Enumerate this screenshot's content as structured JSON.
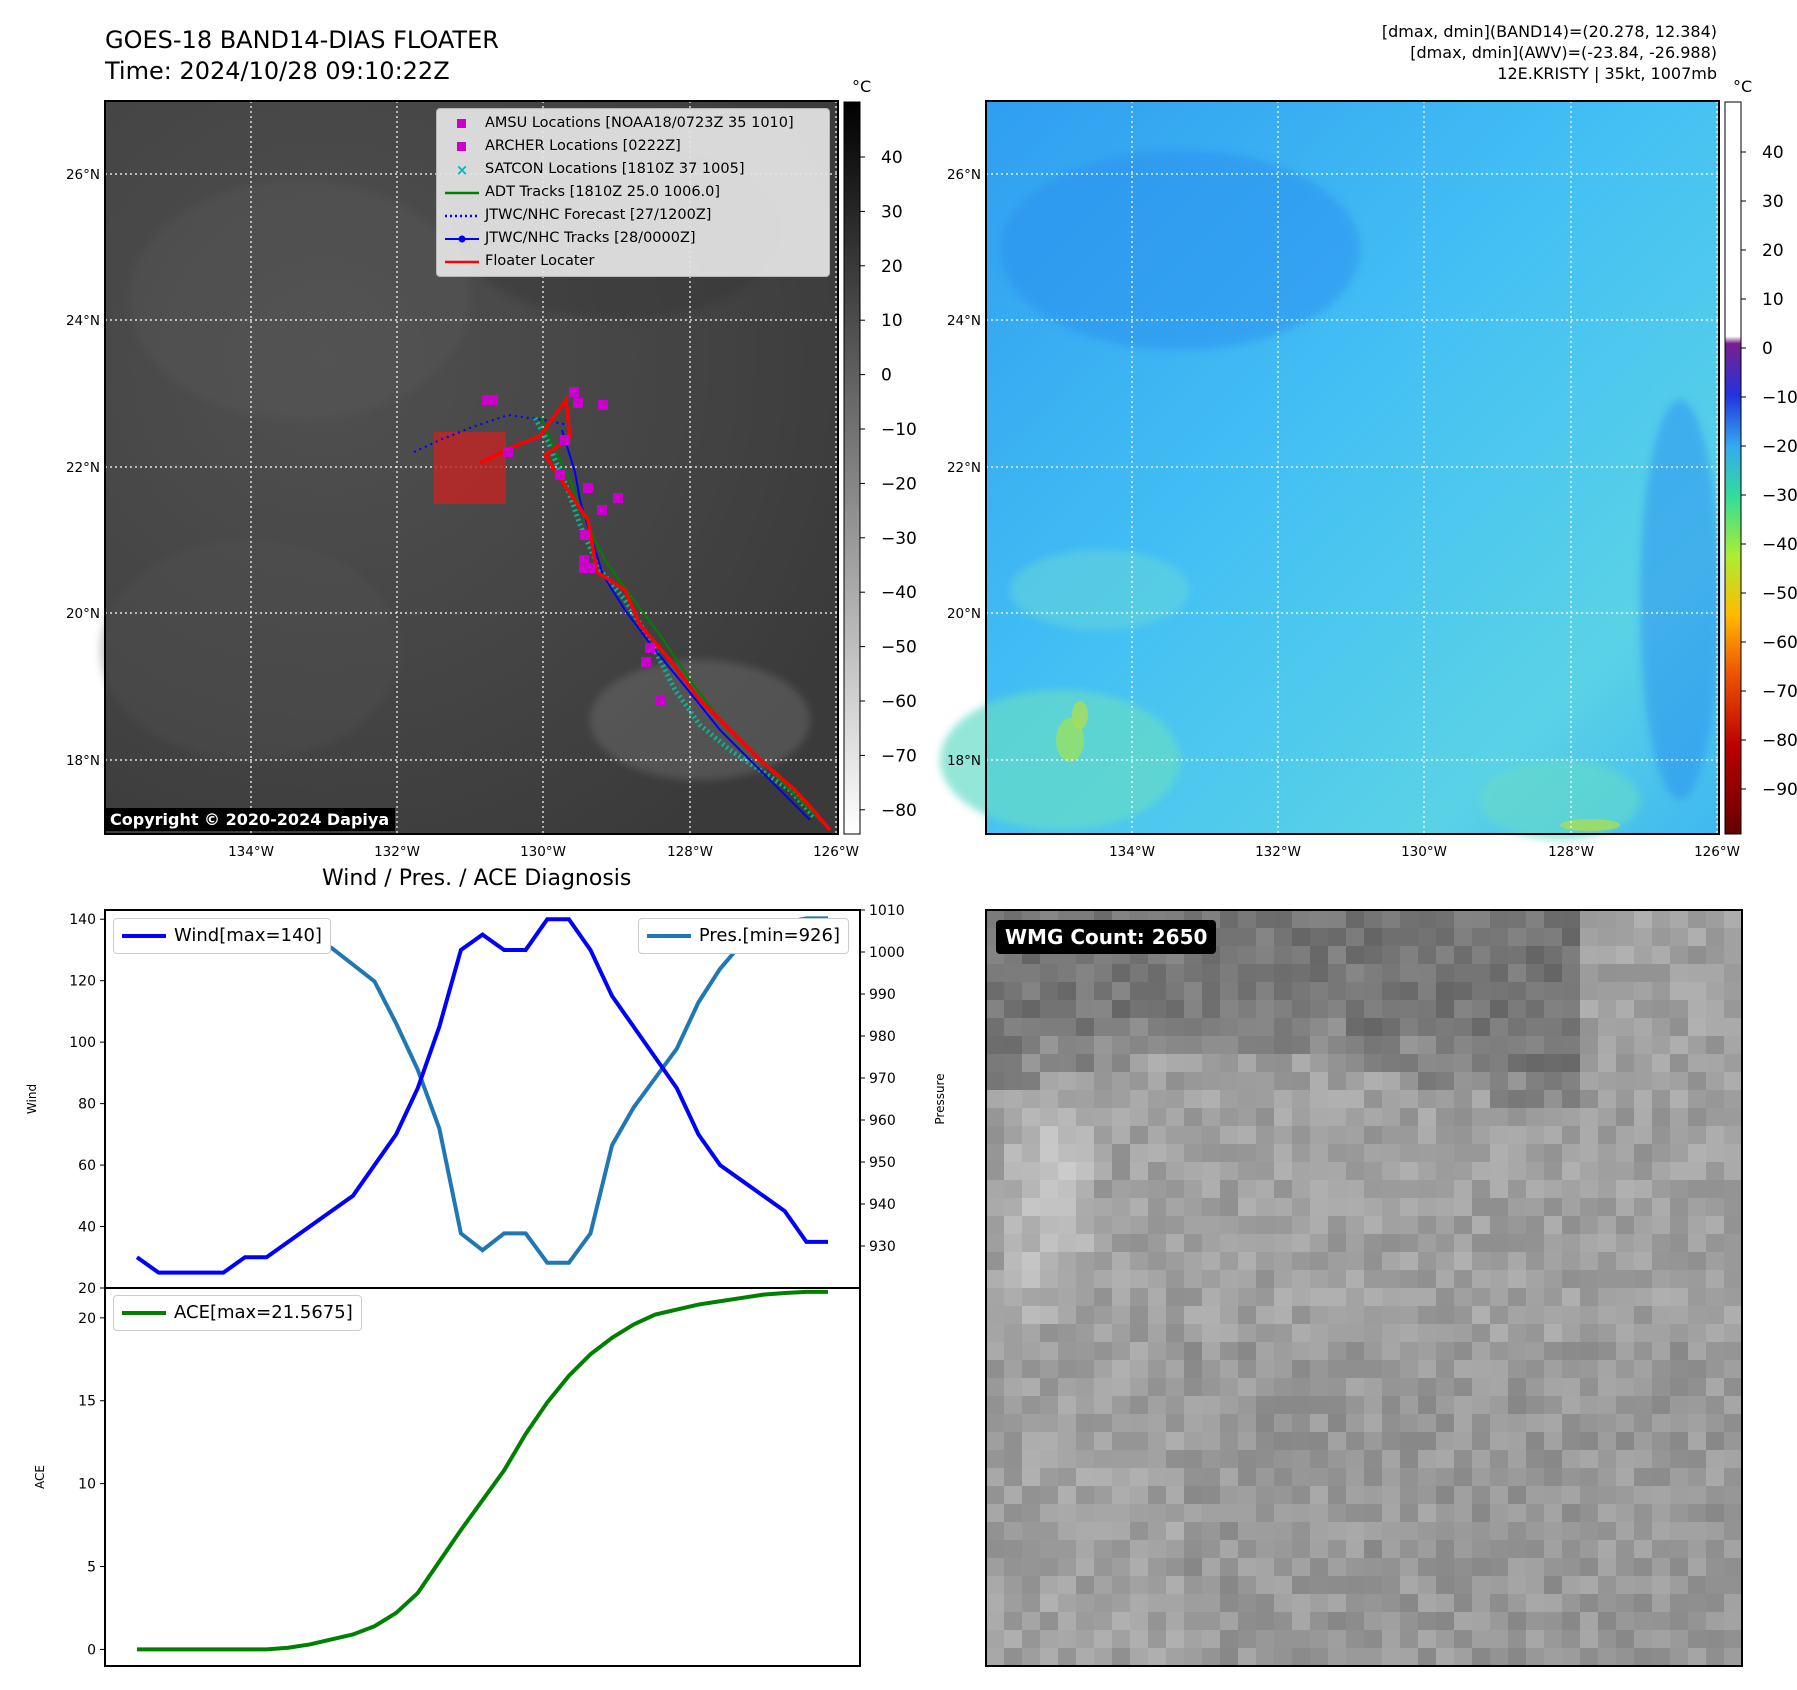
{
  "header": {
    "title": "GOES-18 BAND14-DIAS FLOATER",
    "time": "Time: 2024/10/28 09:10:22Z",
    "meta_line1": "[dmax, dmin](BAND14)=(20.278, 12.384)",
    "meta_line2": "[dmax, dmin](AWV)=(-23.84, -26.988)",
    "meta_line3": "12E.KRISTY | 35kt, 1007mb"
  },
  "copyright": "Copyright © 2020-2024 Dapiya",
  "maps": {
    "lon_ticks": [
      "134°W",
      "132°W",
      "130°W",
      "128°W",
      "126°W"
    ],
    "lat_ticks": [
      "26°N",
      "24°N",
      "22°N",
      "20°N",
      "18°N"
    ],
    "colorbar_unit": "°C",
    "gray_colorbar_ticks": [
      "40",
      "30",
      "20",
      "10",
      "0",
      "−10",
      "−20",
      "−30",
      "−40",
      "−50",
      "−60",
      "−70",
      "−80"
    ],
    "color_colorbar_ticks": [
      "40",
      "30",
      "20",
      "10",
      "0",
      "−10",
      "−20",
      "−30",
      "−40",
      "−50",
      "−60",
      "−70",
      "−80",
      "−90"
    ],
    "legend": [
      {
        "label": "AMSU Locations [NOAA18/0723Z 35 1010]",
        "symbol": "square",
        "color": "#cc00cc"
      },
      {
        "label": "ARCHER Locations [0222Z]",
        "symbol": "square",
        "color": "#cc00cc"
      },
      {
        "label": "SATCON Locations [1810Z 37 1005]",
        "symbol": "x",
        "color": "#00bbbb"
      },
      {
        "label": "ADT Tracks [1810Z 25.0 1006.0]",
        "symbol": "line",
        "color": "#008000"
      },
      {
        "label": "JTWC/NHC Forecast [27/1200Z]",
        "symbol": "dotted",
        "color": "#0000ff"
      },
      {
        "label": "JTWC/NHC Tracks [28/0000Z]",
        "symbol": "line-dot",
        "color": "#0000ff"
      },
      {
        "label": "Floater Locater",
        "symbol": "line",
        "color": "#ff0000"
      }
    ]
  },
  "wmg": {
    "label": "WMG Count: 2650"
  },
  "chart_data": [
    {
      "type": "line",
      "title": "Wind / Pres. / ACE Diagnosis",
      "ylabel": "Wind",
      "y2label": "Pressure",
      "ylim": [
        20,
        143
      ],
      "y2lim": [
        920,
        1010
      ],
      "yticks": [
        20,
        40,
        60,
        80,
        100,
        120,
        140
      ],
      "y2ticks": [
        930,
        940,
        950,
        960,
        970,
        980,
        990,
        1000,
        1010
      ],
      "x": [
        0,
        1,
        2,
        3,
        4,
        5,
        6,
        7,
        8,
        9,
        10,
        11,
        12,
        13,
        14,
        15,
        16,
        17,
        18,
        19,
        20,
        21,
        22,
        23,
        24,
        25,
        26,
        27,
        28,
        29,
        30,
        31,
        32
      ],
      "series": [
        {
          "name": "Wind[max=140]",
          "axis": "left",
          "color": "#0000ff",
          "values": [
            30,
            25,
            25,
            25,
            25,
            30,
            30,
            35,
            40,
            45,
            50,
            60,
            70,
            85,
            105,
            130,
            135,
            130,
            130,
            140,
            140,
            130,
            115,
            105,
            95,
            85,
            70,
            60,
            55,
            50,
            45,
            35,
            35
          ]
        },
        {
          "name": "Pres.[min=926]",
          "axis": "right",
          "color": "#1f77b4",
          "values": [
            1006,
            1006,
            1006,
            1007,
            1007,
            1007,
            1005,
            1005,
            1003,
            1001,
            997,
            993,
            983,
            972,
            958,
            933,
            929,
            933,
            933,
            926,
            926,
            933,
            954,
            963,
            970,
            977,
            988,
            996,
            1002,
            1005,
            1007,
            1008,
            1008
          ]
        }
      ]
    },
    {
      "type": "line",
      "ylabel": "ACE",
      "ylim": [
        -1,
        21.8
      ],
      "yticks": [
        0,
        5,
        10,
        15,
        20
      ],
      "x": [
        0,
        1,
        2,
        3,
        4,
        5,
        6,
        7,
        8,
        9,
        10,
        11,
        12,
        13,
        14,
        15,
        16,
        17,
        18,
        19,
        20,
        21,
        22,
        23,
        24,
        25,
        26,
        27,
        28,
        29,
        30,
        31,
        32
      ],
      "series": [
        {
          "name": "ACE[max=21.5675]",
          "color": "#008000",
          "values": [
            0,
            0,
            0,
            0,
            0,
            0,
            0,
            0.1,
            0.3,
            0.6,
            0.9,
            1.4,
            2.2,
            3.4,
            5.3,
            7.2,
            9.0,
            10.8,
            13.0,
            14.9,
            16.5,
            17.8,
            18.8,
            19.6,
            20.2,
            20.5,
            20.8,
            21.0,
            21.2,
            21.4,
            21.5,
            21.5675,
            21.5675
          ]
        }
      ]
    }
  ]
}
